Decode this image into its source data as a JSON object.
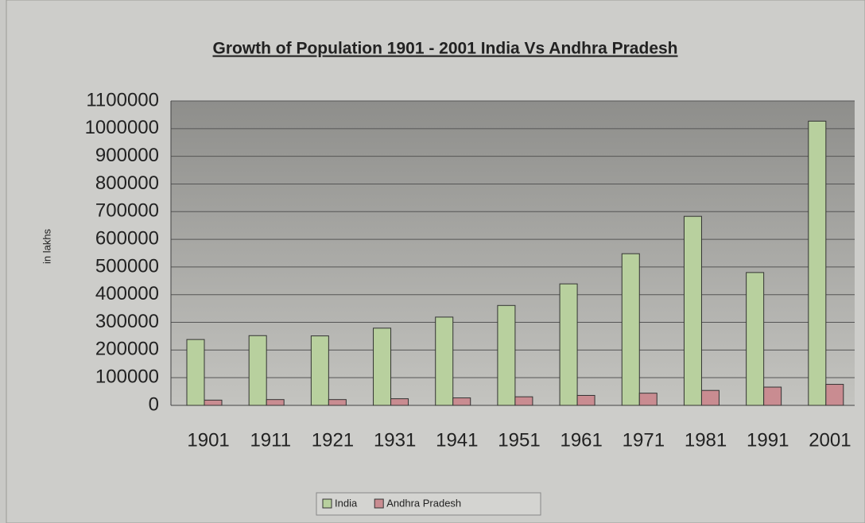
{
  "chart_data": {
    "type": "bar",
    "title": "Growth of Population 1901 - 2001 India Vs Andhra Pradesh",
    "y_label": "in lakhs",
    "categories": [
      "1901",
      "1911",
      "1921",
      "1931",
      "1941",
      "1951",
      "1961",
      "1971",
      "1981",
      "1991",
      "2001"
    ],
    "series": [
      {
        "name": "India",
        "color": "#b8d09e",
        "values": [
          238000,
          252000,
          251000,
          279000,
          319000,
          361000,
          439000,
          548000,
          683000,
          480000,
          1027000
        ]
      },
      {
        "name": "Andhra Pradesh",
        "color": "#c98c91",
        "values": [
          19000,
          21000,
          21000,
          24000,
          27000,
          31000,
          36000,
          44000,
          54000,
          66000,
          76000
        ]
      }
    ],
    "ylim": [
      0,
      1100000
    ],
    "yticks": [
      0,
      100000,
      200000,
      300000,
      400000,
      500000,
      600000,
      700000,
      800000,
      900000,
      1000000,
      1100000
    ],
    "grid": true,
    "legend": "bottom"
  }
}
